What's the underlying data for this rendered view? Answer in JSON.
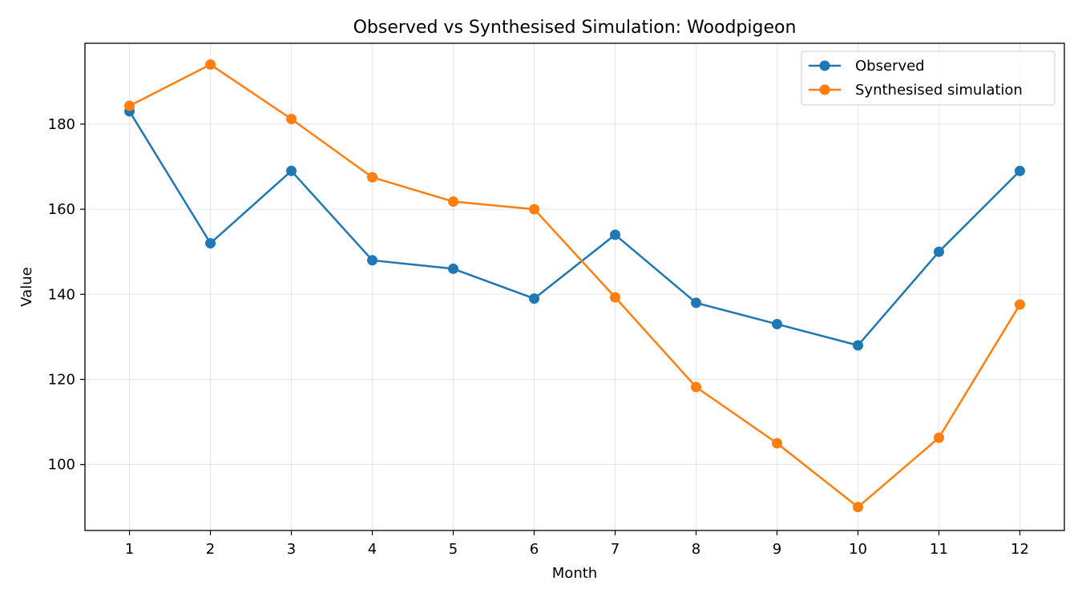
{
  "chart_data": {
    "type": "line",
    "title": "Observed vs Synthesised Simulation: Woodpigeon",
    "xlabel": "Month",
    "ylabel": "Value",
    "x": [
      1,
      2,
      3,
      4,
      5,
      6,
      7,
      8,
      9,
      10,
      11,
      12
    ],
    "x_tick_labels": [
      "1",
      "2",
      "3",
      "4",
      "5",
      "6",
      "7",
      "8",
      "9",
      "10",
      "11",
      "12"
    ],
    "y_ticks": [
      100,
      120,
      140,
      160,
      180
    ],
    "xlim": [
      0.45,
      12.55
    ],
    "ylim": [
      84.5,
      199
    ],
    "grid": true,
    "legend_position": "top-right",
    "series": [
      {
        "name": "Observed",
        "color": "#1f77b4",
        "marker": "circle",
        "values": [
          183,
          152,
          169,
          148,
          146,
          139,
          154,
          138,
          133,
          128,
          150,
          169
        ]
      },
      {
        "name": "Synthesised simulation",
        "color": "#ff7f0e",
        "marker": "circle",
        "values": [
          184.3,
          194,
          181.2,
          167.5,
          161.8,
          160,
          139.3,
          118.2,
          105,
          90,
          106.3,
          137.6
        ]
      }
    ]
  }
}
